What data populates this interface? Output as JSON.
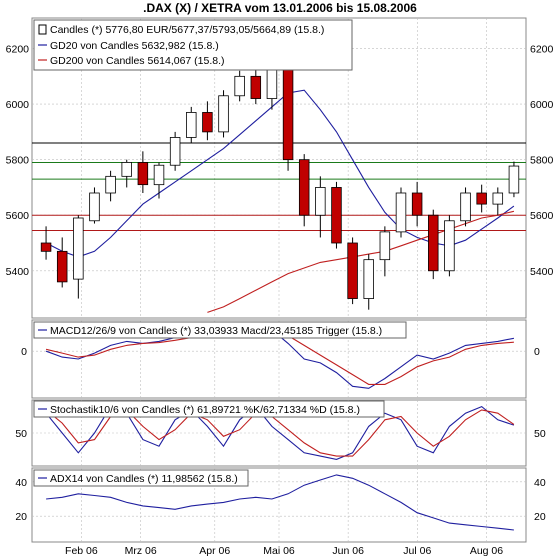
{
  "title": ".DAX (X) / XETRA vom 13.01.2006 bis 15.08.2006",
  "colors": {
    "up_fill": "#ffffff",
    "down_fill": "#c00000",
    "candle_outline": "#000000",
    "gd20": "#1f1f9f",
    "gd200": "#c02020",
    "macd": "#1f1f9f",
    "trigger": "#c02020",
    "stoch_k": "#1f1f9f",
    "stoch_d": "#c02020",
    "adx": "#1f1f9f",
    "resistance": "#000000",
    "support_green": "#1a7a1a",
    "support_red": "#b01818",
    "grid": "#bfbfbf",
    "panel_bg": "#ffffff",
    "frame": "#888888"
  },
  "legend": {
    "candles": "Candles (*) 5776,80 EUR/5677,37/5793,05/5664,89 (15.8.)",
    "gd20": "GD20 von Candles 5632,982 (15.8.)",
    "gd200": "GD200 von Candles 5614,067 (15.8.)",
    "macd": "MACD12/26/9 von Candles (*) 33,03933 Macd/23,45185 Trigger (15.8.)",
    "stoch": "Stochastik10/6 von Candles (*) 61,89721 %K/62,71334 %D (15.8.)",
    "adx": "ADX14 von Candles (*) 11,98562 (15.8.)"
  },
  "chart_data": [
    {
      "type": "candlestick",
      "panel": "price",
      "yticks": [
        5400,
        5600,
        5800,
        6000,
        6200
      ],
      "ylim": [
        5230,
        6310
      ],
      "xticks": [
        "Feb 06",
        "Mrz 06",
        "Apr 06",
        "Mai 06",
        "Jun 06",
        "Jul 06",
        "Aug 06"
      ],
      "candles_weekly_approx": [
        {
          "o": 5500,
          "h": 5560,
          "l": 5440,
          "c": 5470
        },
        {
          "o": 5470,
          "h": 5520,
          "l": 5340,
          "c": 5360
        },
        {
          "o": 5370,
          "h": 5600,
          "l": 5300,
          "c": 5590
        },
        {
          "o": 5580,
          "h": 5700,
          "l": 5570,
          "c": 5680
        },
        {
          "o": 5680,
          "h": 5760,
          "l": 5650,
          "c": 5740
        },
        {
          "o": 5740,
          "h": 5800,
          "l": 5700,
          "c": 5790
        },
        {
          "o": 5790,
          "h": 5830,
          "l": 5680,
          "c": 5710
        },
        {
          "o": 5710,
          "h": 5790,
          "l": 5660,
          "c": 5780
        },
        {
          "o": 5780,
          "h": 5900,
          "l": 5760,
          "c": 5880
        },
        {
          "o": 5880,
          "h": 5990,
          "l": 5860,
          "c": 5970
        },
        {
          "o": 5970,
          "h": 6010,
          "l": 5870,
          "c": 5900
        },
        {
          "o": 5900,
          "h": 6050,
          "l": 5880,
          "c": 6030
        },
        {
          "o": 6030,
          "h": 6120,
          "l": 6010,
          "c": 6100
        },
        {
          "o": 6100,
          "h": 6150,
          "l": 6000,
          "c": 6020
        },
        {
          "o": 6020,
          "h": 6160,
          "l": 5980,
          "c": 6130
        },
        {
          "o": 6130,
          "h": 6140,
          "l": 5760,
          "c": 5800
        },
        {
          "o": 5800,
          "h": 5820,
          "l": 5560,
          "c": 5600
        },
        {
          "o": 5600,
          "h": 5740,
          "l": 5520,
          "c": 5700
        },
        {
          "o": 5700,
          "h": 5720,
          "l": 5480,
          "c": 5500
        },
        {
          "o": 5500,
          "h": 5520,
          "l": 5280,
          "c": 5300
        },
        {
          "o": 5300,
          "h": 5460,
          "l": 5260,
          "c": 5440
        },
        {
          "o": 5440,
          "h": 5560,
          "l": 5380,
          "c": 5540
        },
        {
          "o": 5540,
          "h": 5700,
          "l": 5520,
          "c": 5680
        },
        {
          "o": 5680,
          "h": 5720,
          "l": 5560,
          "c": 5600
        },
        {
          "o": 5600,
          "h": 5620,
          "l": 5370,
          "c": 5400
        },
        {
          "o": 5400,
          "h": 5600,
          "l": 5380,
          "c": 5580
        },
        {
          "o": 5580,
          "h": 5700,
          "l": 5560,
          "c": 5680
        },
        {
          "o": 5680,
          "h": 5710,
          "l": 5610,
          "c": 5640
        },
        {
          "o": 5640,
          "h": 5700,
          "l": 5600,
          "c": 5680
        },
        {
          "o": 5680,
          "h": 5793,
          "l": 5665,
          "c": 5777
        }
      ],
      "gd20_approx": [
        5500,
        5470,
        5450,
        5470,
        5520,
        5580,
        5640,
        5680,
        5720,
        5760,
        5800,
        5840,
        5890,
        5940,
        5990,
        6040,
        6050,
        5980,
        5900,
        5800,
        5700,
        5610,
        5550,
        5520,
        5500,
        5490,
        5510,
        5550,
        5590,
        5633
      ],
      "gd200_approx": [
        null,
        null,
        null,
        null,
        null,
        null,
        null,
        null,
        null,
        null,
        5250,
        5270,
        5300,
        5330,
        5360,
        5390,
        5410,
        5430,
        5440,
        5450,
        5460,
        5470,
        5490,
        5510,
        5530,
        5550,
        5570,
        5590,
        5600,
        5614
      ],
      "hlines": [
        {
          "value": 5860,
          "style": "resistance"
        },
        {
          "value": 5790,
          "style": "support_green"
        },
        {
          "value": 5730,
          "style": "support_green"
        },
        {
          "value": 5600,
          "style": "support_red"
        },
        {
          "value": 5545,
          "style": "support_red"
        }
      ]
    },
    {
      "type": "line",
      "panel": "macd",
      "yticks": [
        0
      ],
      "ylim": [
        -120,
        80
      ],
      "series": [
        {
          "name": "MACD12/26/9",
          "values": [
            0,
            -15,
            -20,
            -5,
            15,
            25,
            20,
            25,
            35,
            45,
            40,
            45,
            55,
            50,
            55,
            20,
            -20,
            -30,
            -55,
            -90,
            -95,
            -70,
            -40,
            -10,
            -20,
            -5,
            15,
            20,
            25,
            33
          ]
        },
        {
          "name": "Trigger",
          "values": [
            5,
            -5,
            -15,
            -10,
            5,
            15,
            20,
            22,
            28,
            35,
            40,
            42,
            48,
            50,
            52,
            40,
            15,
            -10,
            -35,
            -60,
            -85,
            -85,
            -65,
            -40,
            -25,
            -15,
            5,
            15,
            20,
            23
          ]
        }
      ]
    },
    {
      "type": "line",
      "panel": "stoch",
      "yticks": [
        50
      ],
      "ylim": [
        0,
        100
      ],
      "series": [
        {
          "name": "%K",
          "values": [
            80,
            50,
            20,
            50,
            90,
            80,
            40,
            30,
            70,
            85,
            60,
            30,
            70,
            90,
            60,
            40,
            20,
            15,
            10,
            20,
            60,
            80,
            70,
            30,
            20,
            60,
            80,
            90,
            70,
            62
          ]
        },
        {
          "name": "%D",
          "values": [
            85,
            65,
            35,
            40,
            75,
            85,
            60,
            40,
            55,
            80,
            70,
            45,
            55,
            80,
            75,
            55,
            35,
            20,
            15,
            15,
            40,
            70,
            75,
            50,
            30,
            45,
            70,
            85,
            80,
            63
          ]
        }
      ]
    },
    {
      "type": "line",
      "panel": "adx",
      "yticks": [
        20,
        40
      ],
      "ylim": [
        5,
        48
      ],
      "series": [
        {
          "name": "ADX14",
          "values": [
            30,
            31,
            33,
            32,
            31,
            28,
            26,
            25,
            24,
            26,
            27,
            28,
            30,
            31,
            30,
            33,
            38,
            41,
            44,
            42,
            38,
            33,
            28,
            22,
            19,
            16,
            15,
            14,
            13,
            12
          ]
        }
      ]
    }
  ]
}
